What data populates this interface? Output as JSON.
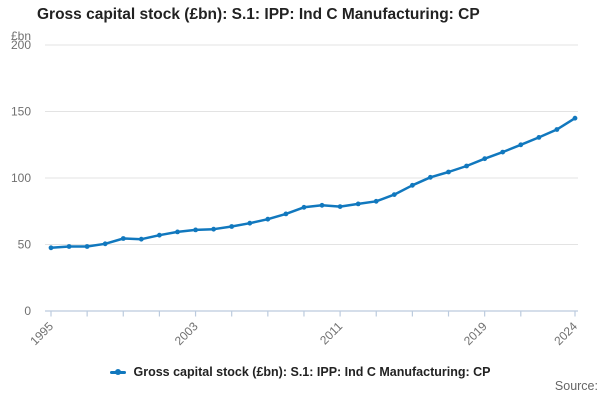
{
  "title": "Gross capital stock (£bn): S.1: IPP: Ind C Manufacturing: CP",
  "chart_data": {
    "type": "line",
    "title": "Gross capital stock (£bn): S.1: IPP: Ind C Manufacturing: CP",
    "unit_label": "£bn",
    "x": [
      1995,
      1996,
      1997,
      1998,
      1999,
      2000,
      2001,
      2002,
      2003,
      2004,
      2005,
      2006,
      2007,
      2008,
      2009,
      2010,
      2011,
      2012,
      2013,
      2014,
      2015,
      2016,
      2017,
      2018,
      2019,
      2020,
      2021,
      2022,
      2023,
      2024
    ],
    "series": [
      {
        "name": "Gross capital stock (£bn): S.1: IPP: Ind C Manufacturing: CP",
        "values": [
          47.5,
          48.5,
          48.5,
          50.5,
          54.5,
          54,
          57,
          59.5,
          61,
          61.5,
          63.5,
          66,
          69,
          73,
          78,
          79.5,
          78.5,
          80.5,
          82.5,
          87.5,
          94.5,
          100.5,
          104.5,
          109,
          114.5,
          119.5,
          125,
          130.5,
          136.5,
          145
        ]
      }
    ],
    "ylim": [
      0,
      200
    ],
    "y_ticks": [
      0,
      50,
      100,
      150,
      200
    ],
    "x_axis_tick_years": [
      1995,
      1997,
      1999,
      2001,
      2003,
      2005,
      2007,
      2009,
      2011,
      2013,
      2015,
      2017,
      2019,
      2021,
      2024
    ],
    "x_labeled_ticks": [
      1995,
      2003,
      2011,
      2019,
      2024
    ],
    "grid": "horizontal",
    "legend_position": "bottom",
    "xlabel": "",
    "ylabel": "£bn",
    "colors": {
      "line": "#1178be",
      "grid": "#e3e3e3",
      "axis": "#bccbde",
      "tick_label": "#707070",
      "title": "#222222",
      "source": "#666666"
    }
  },
  "legend": {
    "label": "Gross capital stock (£bn): S.1: IPP: Ind C Manufacturing: CP"
  },
  "source": {
    "label": "Source:"
  }
}
